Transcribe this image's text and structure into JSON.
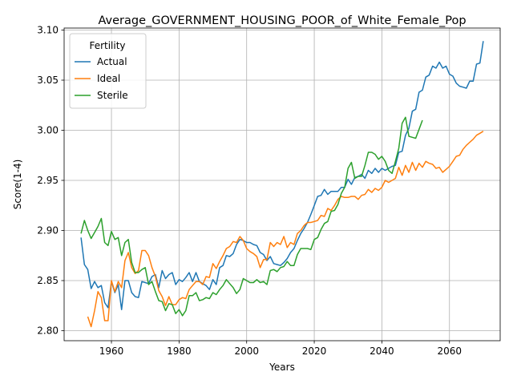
{
  "chart_data": {
    "type": "line",
    "title": "Average_GOVERNMENT_HOUSING_POOR_of_White_Female_Pop",
    "xlabel": "Years",
    "ylabel": "Score(1-4)",
    "xlim": [
      1946,
      2075
    ],
    "ylim": [
      2.79,
      3.102
    ],
    "xticks": [
      1960,
      1980,
      2000,
      2020,
      2040,
      2060
    ],
    "yticks": [
      2.8,
      2.85,
      2.9,
      2.95,
      3.0,
      3.05,
      3.1
    ],
    "grid": true,
    "legend": {
      "title": "Fertility",
      "placement": "upper-left"
    },
    "series": [
      {
        "name": "Actual",
        "color": "#1f77b4",
        "x": [
          1951,
          1952,
          1953,
          1954,
          1955,
          1956,
          1957,
          1958,
          1959,
          1960,
          1961,
          1962,
          1963,
          1964,
          1965,
          1966,
          1967,
          1968,
          1969,
          1970,
          1971,
          1972,
          1973,
          1974,
          1975,
          1976,
          1977,
          1978,
          1979,
          1980,
          1981,
          1982,
          1983,
          1984,
          1985,
          1986,
          1987,
          1988,
          1989,
          1990,
          1991,
          1992,
          1993,
          1994,
          1995,
          1996,
          1997,
          1998,
          1999,
          2000,
          2001,
          2002,
          2003,
          2004,
          2005,
          2006,
          2007,
          2008,
          2009,
          2010,
          2011,
          2012,
          2013,
          2014,
          2015,
          2016,
          2017,
          2018,
          2019,
          2020,
          2021,
          2022,
          2023,
          2024,
          2025,
          2026,
          2027,
          2028,
          2029,
          2030,
          2031,
          2032,
          2033,
          2034,
          2035,
          2036,
          2037,
          2038,
          2039,
          2040,
          2041,
          2042,
          2043,
          2044,
          2045,
          2046,
          2047,
          2048,
          2049,
          2050,
          2051,
          2052,
          2053,
          2054,
          2055,
          2056,
          2057,
          2058,
          2059,
          2060,
          2061,
          2062,
          2063,
          2064,
          2065,
          2066,
          2067,
          2068,
          2069,
          2070
        ],
        "values": [
          2.893,
          2.866,
          2.861,
          2.842,
          2.849,
          2.843,
          2.845,
          2.828,
          2.823,
          2.849,
          2.838,
          2.846,
          2.821,
          2.85,
          2.85,
          2.838,
          2.834,
          2.833,
          2.849,
          2.848,
          2.847,
          2.854,
          2.856,
          2.843,
          2.86,
          2.852,
          2.856,
          2.858,
          2.846,
          2.851,
          2.849,
          2.853,
          2.858,
          2.849,
          2.858,
          2.849,
          2.847,
          2.845,
          2.841,
          2.851,
          2.846,
          2.863,
          2.865,
          2.875,
          2.874,
          2.877,
          2.886,
          2.891,
          2.89,
          2.888,
          2.888,
          2.886,
          2.885,
          2.878,
          2.876,
          2.87,
          2.874,
          2.867,
          2.866,
          2.865,
          2.868,
          2.872,
          2.878,
          2.882,
          2.89,
          2.897,
          2.902,
          2.908,
          2.916,
          2.925,
          2.934,
          2.935,
          2.941,
          2.936,
          2.939,
          2.939,
          2.939,
          2.943,
          2.943,
          2.951,
          2.946,
          2.953,
          2.954,
          2.956,
          2.952,
          2.96,
          2.957,
          2.962,
          2.958,
          2.962,
          2.96,
          2.962,
          2.964,
          2.965,
          2.978,
          2.979,
          2.995,
          3.002,
          3.019,
          3.021,
          3.038,
          3.04,
          3.053,
          3.055,
          3.064,
          3.062,
          3.068,
          3.062,
          3.064,
          3.056,
          3.054,
          3.047,
          3.044,
          3.043,
          3.042,
          3.049,
          3.049,
          3.066,
          3.067,
          3.089
        ]
      },
      {
        "name": "Ideal",
        "color": "#ff7f0e",
        "x": [
          1953,
          1954,
          1955,
          1956,
          1957,
          1958,
          1959,
          1960,
          1961,
          1962,
          1963,
          1964,
          1965,
          1966,
          1967,
          1968,
          1969,
          1970,
          1971,
          1972,
          1973,
          1974,
          1975,
          1976,
          1977,
          1978,
          1979,
          1980,
          1981,
          1982,
          1983,
          1984,
          1985,
          1986,
          1987,
          1988,
          1989,
          1990,
          1991,
          1992,
          1993,
          1994,
          1995,
          1996,
          1997,
          1998,
          1999,
          2000,
          2001,
          2002,
          2003,
          2004,
          2005,
          2006,
          2007,
          2008,
          2009,
          2010,
          2011,
          2012,
          2013,
          2014,
          2015,
          2016,
          2017,
          2018,
          2019,
          2020,
          2021,
          2022,
          2023,
          2024,
          2025,
          2026,
          2027,
          2028,
          2029,
          2030,
          2031,
          2032,
          2033,
          2034,
          2035,
          2036,
          2037,
          2038,
          2039,
          2040,
          2041,
          2042,
          2043,
          2044,
          2045,
          2046,
          2047,
          2048,
          2049,
          2050,
          2051,
          2052,
          2053,
          2054,
          2055,
          2056,
          2057,
          2058,
          2059,
          2060,
          2061,
          2062,
          2063,
          2064,
          2065,
          2066,
          2067,
          2068,
          2069,
          2070
        ],
        "values": [
          2.814,
          2.804,
          2.82,
          2.839,
          2.833,
          2.81,
          2.81,
          2.85,
          2.839,
          2.849,
          2.843,
          2.87,
          2.878,
          2.863,
          2.857,
          2.86,
          2.88,
          2.88,
          2.875,
          2.863,
          2.854,
          2.84,
          2.834,
          2.825,
          2.834,
          2.826,
          2.826,
          2.831,
          2.833,
          2.832,
          2.841,
          2.845,
          2.849,
          2.849,
          2.846,
          2.854,
          2.853,
          2.867,
          2.862,
          2.869,
          2.875,
          2.882,
          2.884,
          2.889,
          2.888,
          2.894,
          2.89,
          2.882,
          2.879,
          2.877,
          2.874,
          2.863,
          2.871,
          2.871,
          2.888,
          2.884,
          2.888,
          2.886,
          2.894,
          2.883,
          2.888,
          2.886,
          2.897,
          2.9,
          2.905,
          2.908,
          2.908,
          2.909,
          2.91,
          2.915,
          2.914,
          2.922,
          2.92,
          2.925,
          2.931,
          2.934,
          2.933,
          2.933,
          2.934,
          2.934,
          2.931,
          2.935,
          2.936,
          2.941,
          2.938,
          2.942,
          2.94,
          2.943,
          2.95,
          2.948,
          2.95,
          2.952,
          2.963,
          2.955,
          2.965,
          2.958,
          2.968,
          2.96,
          2.967,
          2.963,
          2.969,
          2.967,
          2.966,
          2.962,
          2.963,
          2.958,
          2.961,
          2.964,
          2.969,
          2.974,
          2.975,
          2.981,
          2.985,
          2.988,
          2.991,
          2.995,
          2.997,
          2.999
        ]
      },
      {
        "name": "Sterile",
        "color": "#2ca02c",
        "x": [
          1951,
          1952,
          1953,
          1954,
          1955,
          1956,
          1957,
          1958,
          1959,
          1960,
          1961,
          1962,
          1963,
          1964,
          1965,
          1966,
          1967,
          1968,
          1969,
          1970,
          1971,
          1972,
          1973,
          1974,
          1975,
          1976,
          1977,
          1978,
          1979,
          1980,
          1981,
          1982,
          1983,
          1984,
          1985,
          1986,
          1987,
          1988,
          1989,
          1990,
          1991,
          1992,
          1993,
          1994,
          1995,
          1996,
          1997,
          1998,
          1999,
          2000,
          2001,
          2002,
          2003,
          2004,
          2005,
          2006,
          2007,
          2008,
          2009,
          2010,
          2011,
          2012,
          2013,
          2014,
          2015,
          2016,
          2017,
          2018,
          2019,
          2020,
          2021,
          2022,
          2023,
          2024,
          2025,
          2026,
          2027,
          2028,
          2029,
          2030,
          2031,
          2032,
          2033,
          2034,
          2035,
          2036,
          2037,
          2038,
          2039,
          2040,
          2041,
          2042,
          2043,
          2044,
          2045,
          2046,
          2047,
          2048,
          2049,
          2050,
          2051,
          2052
        ],
        "values": [
          2.897,
          2.91,
          2.9,
          2.892,
          2.898,
          2.904,
          2.912,
          2.888,
          2.885,
          2.899,
          2.891,
          2.893,
          2.875,
          2.888,
          2.891,
          2.868,
          2.858,
          2.858,
          2.861,
          2.863,
          2.846,
          2.849,
          2.839,
          2.83,
          2.829,
          2.82,
          2.827,
          2.826,
          2.817,
          2.821,
          2.815,
          2.82,
          2.835,
          2.835,
          2.838,
          2.83,
          2.831,
          2.833,
          2.832,
          2.838,
          2.836,
          2.841,
          2.845,
          2.851,
          2.847,
          2.843,
          2.837,
          2.841,
          2.852,
          2.85,
          2.848,
          2.848,
          2.851,
          2.848,
          2.849,
          2.846,
          2.86,
          2.861,
          2.859,
          2.863,
          2.864,
          2.869,
          2.865,
          2.865,
          2.876,
          2.882,
          2.882,
          2.882,
          2.881,
          2.891,
          2.893,
          2.901,
          2.907,
          2.909,
          2.919,
          2.92,
          2.926,
          2.937,
          2.943,
          2.962,
          2.968,
          2.952,
          2.954,
          2.954,
          2.965,
          2.978,
          2.978,
          2.976,
          2.971,
          2.974,
          2.969,
          2.96,
          2.957,
          2.969,
          2.982,
          3.007,
          3.013,
          2.994,
          2.993,
          2.992,
          3.001,
          3.01
        ]
      }
    ]
  }
}
